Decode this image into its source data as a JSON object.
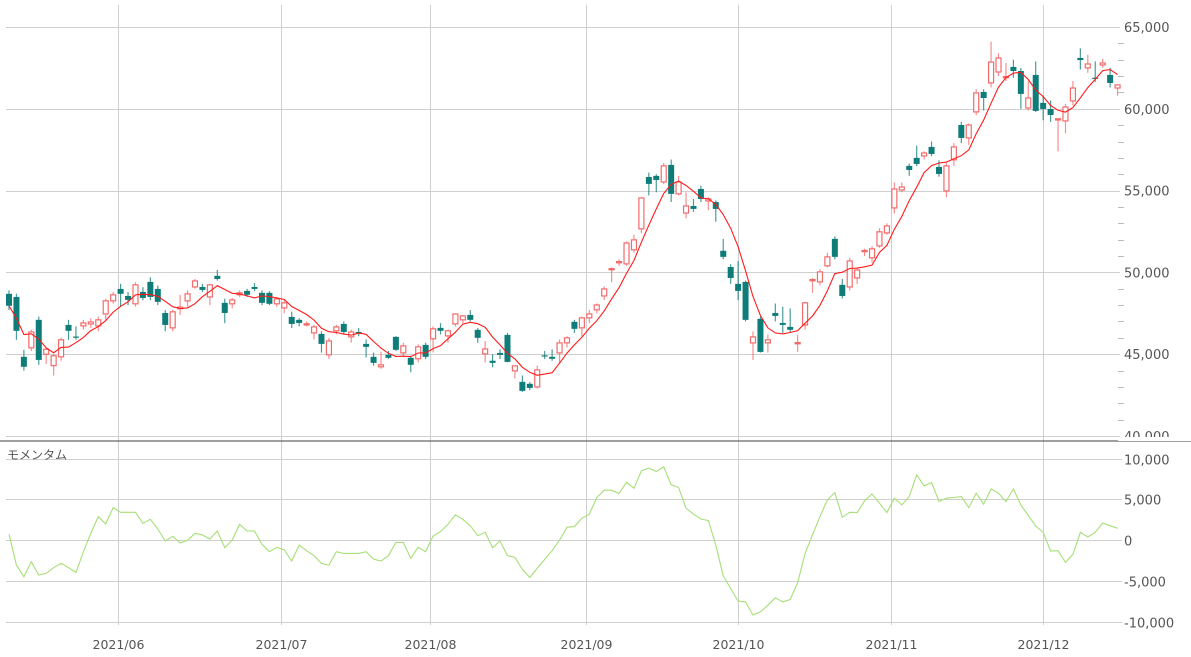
{
  "chart_data": [
    {
      "type": "candlestick",
      "title": "",
      "ylim": [
        40000,
        65000
      ],
      "y_ticks": [
        "40,000",
        "45,000",
        "50,000",
        "55,000",
        "60,000",
        "65,000"
      ],
      "y_tick_values": [
        40000,
        45000,
        50000,
        55000,
        60000,
        65000
      ],
      "grid": true,
      "x_ticks": [
        {
          "label": "2021/06",
          "index": 15.65
        },
        {
          "label": "2021/07",
          "index": 37.6
        },
        {
          "label": "2021/08",
          "index": 57.6
        },
        {
          "label": "2021/09",
          "index": 78.6
        },
        {
          "label": "2021/10",
          "index": 99
        },
        {
          "label": "2021/11",
          "index": 119.5
        },
        {
          "label": "2021/12",
          "index": 140
        }
      ],
      "moving_average_period": 5,
      "colors": {
        "up": "#f26b6b",
        "down": "#0e7c78",
        "ma": "#ff1a1a",
        "signal": "#ff0000",
        "grid": "#cfcfcf"
      },
      "signal_candles": [
        12,
        58,
        75,
        109
      ],
      "ohlc": [
        [
          48690,
          48900,
          47700,
          47960
        ],
        [
          48500,
          48700,
          45880,
          46430
        ],
        [
          44840,
          45270,
          44000,
          44230
        ],
        [
          45390,
          46500,
          45200,
          46360
        ],
        [
          47100,
          47300,
          44350,
          44650
        ],
        [
          45000,
          45400,
          44410,
          45300
        ],
        [
          44300,
          45000,
          43700,
          44900
        ],
        [
          44840,
          46000,
          44600,
          45880
        ],
        [
          46790,
          47100,
          45880,
          46430
        ],
        [
          46080,
          46700,
          45880,
          46020
        ],
        [
          46730,
          47100,
          46500,
          46910
        ],
        [
          46850,
          47200,
          46600,
          46970
        ],
        [
          46730,
          47300,
          46400,
          47100
        ],
        [
          47460,
          48400,
          47100,
          48260
        ],
        [
          48260,
          48800,
          48100,
          48630
        ],
        [
          48990,
          49300,
          47900,
          48690
        ],
        [
          48560,
          48800,
          48000,
          48320
        ],
        [
          48080,
          49400,
          47900,
          49240
        ],
        [
          48810,
          49100,
          48300,
          48440
        ],
        [
          49420,
          49700,
          48300,
          48500
        ],
        [
          48990,
          49200,
          48000,
          48200
        ],
        [
          47520,
          47700,
          46400,
          46790
        ],
        [
          46610,
          47700,
          46400,
          47590
        ],
        [
          47780,
          48630,
          47400,
          47880
        ],
        [
          48260,
          48900,
          47900,
          48690
        ],
        [
          49110,
          49600,
          49000,
          49480
        ],
        [
          49110,
          49300,
          48800,
          48930
        ],
        [
          48500,
          49300,
          48000,
          49240
        ],
        [
          49790,
          50150,
          49500,
          49600
        ],
        [
          48140,
          48400,
          46900,
          47520
        ],
        [
          48080,
          48450,
          47800,
          48320
        ],
        [
          48630,
          48900,
          48500,
          48750
        ],
        [
          48870,
          49000,
          48500,
          48630
        ],
        [
          49110,
          49350,
          48850,
          48990
        ],
        [
          48750,
          48900,
          48000,
          48140
        ],
        [
          48750,
          48850,
          48000,
          48080
        ],
        [
          48080,
          48500,
          47900,
          48380
        ],
        [
          47830,
          48300,
          47500,
          48140
        ],
        [
          47280,
          47600,
          46600,
          46850
        ],
        [
          47100,
          47200,
          46700,
          46910
        ],
        [
          46850,
          47000,
          46700,
          46860
        ],
        [
          46300,
          46800,
          45900,
          46670
        ],
        [
          46240,
          46400,
          45100,
          45630
        ],
        [
          44960,
          46000,
          44700,
          45810
        ],
        [
          46430,
          46800,
          46200,
          46670
        ],
        [
          46850,
          47000,
          46200,
          46360
        ],
        [
          46060,
          46500,
          45700,
          46360
        ],
        [
          46360,
          46600,
          46100,
          46240
        ],
        [
          45630,
          45900,
          44800,
          45450
        ],
        [
          44840,
          45100,
          44300,
          44470
        ],
        [
          44230,
          45140,
          44100,
          44350
        ],
        [
          44960,
          45200,
          44700,
          44780
        ],
        [
          46060,
          46100,
          45200,
          45270
        ],
        [
          45080,
          45700,
          44900,
          45510
        ],
        [
          44780,
          44900,
          43900,
          44350
        ],
        [
          44720,
          45600,
          44500,
          45450
        ],
        [
          45570,
          45700,
          44700,
          44840
        ],
        [
          45940,
          46700,
          45100,
          46550
        ],
        [
          46610,
          46900,
          46200,
          46430
        ],
        [
          46120,
          46500,
          45700,
          46430
        ],
        [
          46850,
          47500,
          46700,
          47460
        ],
        [
          47100,
          47400,
          46900,
          47340
        ],
        [
          47400,
          47700,
          47000,
          47100
        ],
        [
          46490,
          46600,
          45700,
          46000
        ],
        [
          45020,
          45800,
          44500,
          45320
        ],
        [
          44600,
          45000,
          44200,
          44470
        ],
        [
          45080,
          45300,
          44700,
          44960
        ],
        [
          46180,
          46300,
          44500,
          44530
        ],
        [
          43980,
          44300,
          43500,
          44290
        ],
        [
          43310,
          43700,
          42700,
          42760
        ],
        [
          43190,
          43300,
          42800,
          42940
        ],
        [
          43000,
          44300,
          42900,
          44040
        ],
        [
          44930,
          45200,
          44700,
          44880
        ],
        [
          44840,
          45300,
          44600,
          44720
        ],
        [
          45080,
          45900,
          44400,
          45690
        ],
        [
          45690,
          46100,
          45400,
          46000
        ],
        [
          46980,
          47100,
          46300,
          46550
        ],
        [
          46610,
          47300,
          46100,
          47220
        ],
        [
          47220,
          47700,
          46900,
          47460
        ],
        [
          47710,
          48100,
          47500,
          48010
        ],
        [
          48560,
          49150,
          48300,
          48990
        ],
        [
          50180,
          50300,
          49400,
          50230
        ],
        [
          50620,
          50800,
          50400,
          50660
        ],
        [
          50520,
          51900,
          50400,
          51800
        ],
        [
          51380,
          52300,
          51200,
          51990
        ],
        [
          52660,
          54600,
          52400,
          54550
        ],
        [
          55830,
          56100,
          54700,
          55410
        ],
        [
          55900,
          56000,
          54900,
          55650
        ],
        [
          55530,
          56700,
          55400,
          56510
        ],
        [
          56570,
          56900,
          54300,
          54800
        ],
        [
          54800,
          55900,
          54700,
          55530
        ],
        [
          53630,
          54900,
          53300,
          54060
        ],
        [
          54060,
          54500,
          53700,
          53880
        ],
        [
          55100,
          55300,
          54300,
          54490
        ],
        [
          54370,
          54600,
          53800,
          54490
        ],
        [
          54300,
          54400,
          53100,
          53880
        ],
        [
          51320,
          52050,
          50800,
          50950
        ],
        [
          50330,
          50500,
          49300,
          49660
        ],
        [
          49300,
          50700,
          48300,
          48870
        ],
        [
          49420,
          49500,
          47000,
          47100
        ],
        [
          45690,
          46400,
          44650,
          46060
        ],
        [
          47160,
          47300,
          45100,
          45140
        ],
        [
          45690,
          46200,
          45100,
          45880
        ],
        [
          47520,
          48100,
          47000,
          47340
        ],
        [
          46910,
          47900,
          46300,
          46790
        ],
        [
          46670,
          47800,
          46300,
          46490
        ],
        [
          45670,
          46200,
          45140,
          45710
        ],
        [
          46790,
          48200,
          46500,
          48140
        ],
        [
          49520,
          49660,
          48750,
          49560
        ],
        [
          49420,
          50200,
          49200,
          50030
        ],
        [
          50400,
          51200,
          50300,
          50950
        ],
        [
          52050,
          52200,
          50800,
          50950
        ],
        [
          49240,
          49600,
          48400,
          48560
        ],
        [
          49110,
          50900,
          48900,
          50700
        ],
        [
          49660,
          50300,
          49300,
          50150
        ],
        [
          51300,
          51450,
          51000,
          51340
        ],
        [
          50890,
          51600,
          50600,
          51440
        ],
        [
          51620,
          52700,
          51500,
          52480
        ],
        [
          52410,
          53000,
          52300,
          52840
        ],
        [
          53940,
          55500,
          53600,
          55100
        ],
        [
          55040,
          55500,
          54900,
          55220
        ],
        [
          56510,
          56650,
          55900,
          56260
        ],
        [
          57000,
          57750,
          56500,
          56630
        ],
        [
          57120,
          57400,
          56900,
          57300
        ],
        [
          57670,
          58000,
          57100,
          57240
        ],
        [
          56450,
          56850,
          55850,
          56020
        ],
        [
          54980,
          56700,
          54600,
          56510
        ],
        [
          56880,
          57900,
          56500,
          57670
        ],
        [
          59010,
          59200,
          57900,
          58220
        ],
        [
          58220,
          59100,
          57800,
          59010
        ],
        [
          59810,
          61200,
          59600,
          60970
        ],
        [
          61030,
          61200,
          59900,
          60660
        ],
        [
          61580,
          64100,
          61300,
          62860
        ],
        [
          62250,
          63400,
          62000,
          63110
        ],
        [
          61930,
          62800,
          61700,
          61970
        ],
        [
          62560,
          63000,
          61900,
          62310
        ],
        [
          62310,
          62500,
          60000,
          60910
        ],
        [
          60050,
          61700,
          59900,
          60660
        ],
        [
          62070,
          62900,
          59800,
          59870
        ],
        [
          60360,
          60800,
          59300,
          59990
        ],
        [
          59990,
          60500,
          59200,
          59620
        ],
        [
          59370,
          59400,
          57400,
          59390
        ],
        [
          59260,
          60300,
          58500,
          60110
        ],
        [
          60480,
          61700,
          60200,
          61270
        ],
        [
          63110,
          63700,
          62400,
          62980
        ],
        [
          62500,
          63300,
          62200,
          62740
        ],
        [
          61900,
          62900,
          61650,
          61880
        ],
        [
          62680,
          63050,
          62500,
          62800
        ],
        [
          62070,
          62500,
          61300,
          61580
        ],
        [
          61270,
          61500,
          60800,
          61460
        ]
      ]
    },
    {
      "type": "line",
      "title": "モメンタム",
      "ylim": [
        -10000,
        10000
      ],
      "y_ticks": [
        "-10,000",
        "-5,000",
        "0",
        "5,000",
        "10,000"
      ],
      "y_tick_values": [
        -10000,
        -5000,
        0,
        5000,
        10000
      ],
      "colors": {
        "line": "#a6df78",
        "zero": "#ff0000"
      },
      "values": [
        740,
        -3080,
        -4510,
        -2670,
        -4300,
        -4100,
        -3400,
        -2870,
        -3400,
        -3980,
        -1440,
        820,
        2870,
        1970,
        3980,
        3400,
        3400,
        3400,
        2050,
        2540,
        1350,
        -120,
        450,
        -370,
        -40,
        820,
        620,
        120,
        1110,
        -940,
        0,
        1930,
        1110,
        1110,
        -530,
        -1440,
        -900,
        -1230,
        -2580,
        -620,
        -1310,
        -1930,
        -2870,
        -3080,
        -1440,
        -1640,
        -1640,
        -1640,
        -1440,
        -2340,
        -2580,
        -1930,
        -290,
        -290,
        -2250,
        -900,
        -1440,
        490,
        1030,
        1930,
        3080,
        2540,
        1760,
        530,
        940,
        -940,
        -120,
        -1930,
        -2130,
        -3610,
        -4590,
        -3490,
        -2380,
        -1310,
        0,
        1560,
        1640,
        2670,
        3160,
        5210,
        6110,
        6110,
        5700,
        7090,
        6360,
        8490,
        8820,
        8410,
        8980,
        6770,
        6440,
        3900,
        3160,
        2580,
        2380,
        -620,
        -4390,
        -5950,
        -7500,
        -7590,
        -9220,
        -8820,
        -8000,
        -7090,
        -7590,
        -7300,
        -5250,
        -1640,
        620,
        2870,
        4920,
        5820,
        2790,
        3400,
        3360,
        4800,
        5660,
        4510,
        3360,
        5130,
        4310,
        5330,
        8000,
        6640,
        7050,
        4720,
        5130,
        5210,
        5330,
        3980,
        5740,
        4390,
        6270,
        5740,
        4720,
        6270,
        4310,
        2990,
        1720,
        940,
        -1350,
        -1310,
        -2750,
        -1760,
        940,
        370,
        940,
        2090,
        1760,
        1440
      ]
    }
  ]
}
